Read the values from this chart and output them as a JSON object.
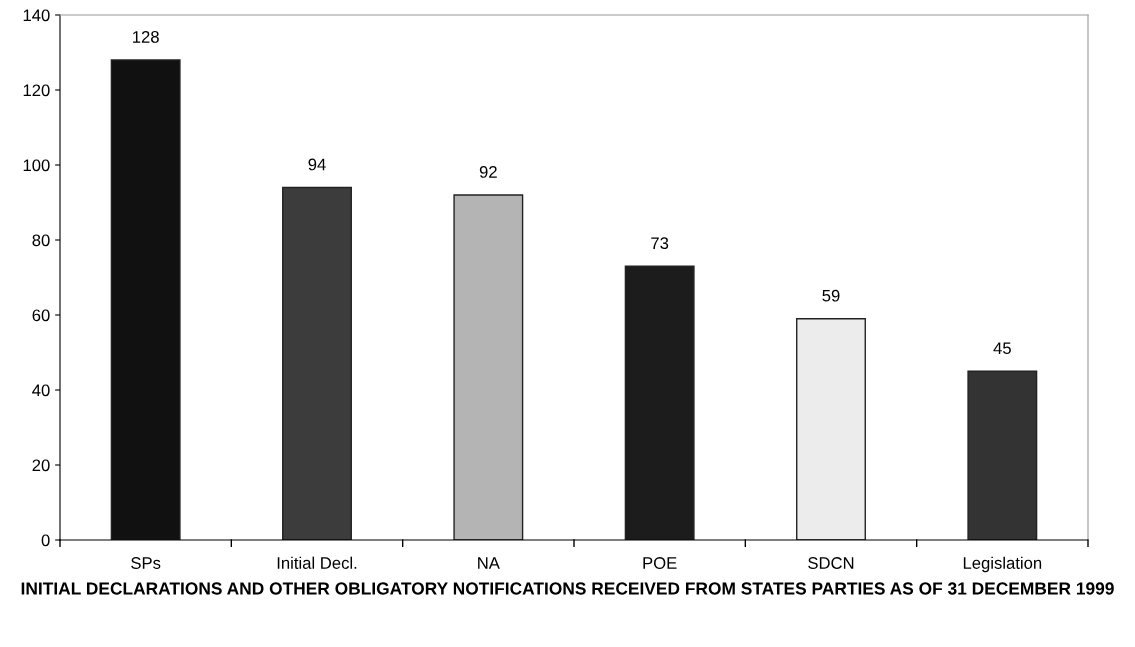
{
  "chart_data": {
    "type": "bar",
    "title": "INITIAL DECLARATIONS AND OTHER OBLIGATORY NOTIFICATIONS RECEIVED FROM STATES PARTIES AS OF 31 DECEMBER 1999",
    "categories": [
      "SPs",
      "Initial Decl.",
      "NA",
      "POE",
      "SDCN",
      "Legislation"
    ],
    "values": [
      128,
      94,
      92,
      73,
      59,
      45
    ],
    "colors": [
      "#111111",
      "#3c3c3c",
      "#b4b4b4",
      "#1c1c1c",
      "#ececec",
      "#333333"
    ],
    "data_labels": true,
    "ylim": [
      0,
      140
    ],
    "yticks": [
      0,
      20,
      40,
      60,
      80,
      100,
      120,
      140
    ],
    "grid": false,
    "legend": false
  }
}
